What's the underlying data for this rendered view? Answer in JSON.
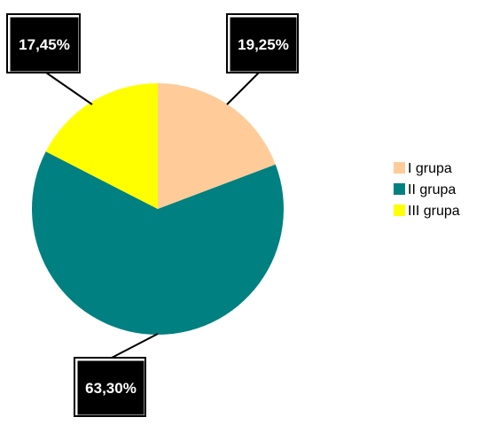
{
  "chart_data": {
    "type": "pie",
    "categories": [
      "I grupa",
      "II grupa",
      "III grupa"
    ],
    "values": [
      19.25,
      63.3,
      17.45
    ],
    "data_labels": [
      "19,25%",
      "63,30%",
      "17,45%"
    ],
    "colors": [
      "#FFCC99",
      "#008080",
      "#FFFF00"
    ],
    "start_angle": "12 o'clock",
    "direction": "clockwise",
    "legend": {
      "position": "right",
      "items": [
        "I grupa",
        "II grupa",
        "III grupa"
      ]
    },
    "label_style": {
      "background": "#000000",
      "text_color": "#FFFFFF",
      "border": "#000000",
      "leader_lines": true
    }
  }
}
